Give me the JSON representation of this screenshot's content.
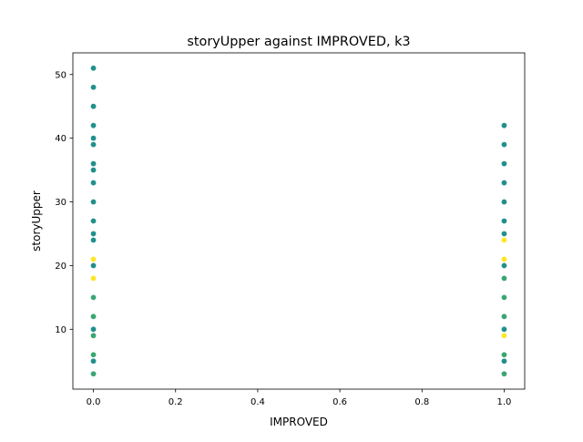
{
  "chart_data": {
    "type": "scatter",
    "title": "storyUpper against IMPROVED, k3",
    "xlabel": "IMPROVED",
    "ylabel": "storyUpper",
    "xlim": [
      -0.05,
      1.05
    ],
    "ylim": [
      0.6,
      53.4
    ],
    "x_ticks": [
      "0.0",
      "0.2",
      "0.4",
      "0.6",
      "0.8",
      "1.0"
    ],
    "y_ticks": [
      "10",
      "20",
      "30",
      "40",
      "50"
    ],
    "grid": false,
    "point_colors": {
      "teal": "#21908d",
      "green": "#3aa672",
      "yellow": "#fde725"
    },
    "points": [
      {
        "x": 0,
        "y": 51,
        "color": "teal"
      },
      {
        "x": 0,
        "y": 48,
        "color": "teal"
      },
      {
        "x": 0,
        "y": 45,
        "color": "teal"
      },
      {
        "x": 0,
        "y": 42,
        "color": "teal"
      },
      {
        "x": 0,
        "y": 40,
        "color": "teal"
      },
      {
        "x": 0,
        "y": 39,
        "color": "teal"
      },
      {
        "x": 0,
        "y": 36,
        "color": "teal"
      },
      {
        "x": 0,
        "y": 35,
        "color": "teal"
      },
      {
        "x": 0,
        "y": 33,
        "color": "teal"
      },
      {
        "x": 0,
        "y": 30,
        "color": "teal"
      },
      {
        "x": 0,
        "y": 27,
        "color": "teal"
      },
      {
        "x": 0,
        "y": 25,
        "color": "teal"
      },
      {
        "x": 0,
        "y": 24,
        "color": "teal"
      },
      {
        "x": 0,
        "y": 21,
        "color": "yellow"
      },
      {
        "x": 0,
        "y": 20,
        "color": "teal"
      },
      {
        "x": 0,
        "y": 18,
        "color": "yellow"
      },
      {
        "x": 0,
        "y": 15,
        "color": "green"
      },
      {
        "x": 0,
        "y": 12,
        "color": "green"
      },
      {
        "x": 0,
        "y": 10,
        "color": "teal"
      },
      {
        "x": 0,
        "y": 9,
        "color": "green"
      },
      {
        "x": 0,
        "y": 6,
        "color": "green"
      },
      {
        "x": 0,
        "y": 5,
        "color": "teal"
      },
      {
        "x": 0,
        "y": 3,
        "color": "green"
      },
      {
        "x": 1,
        "y": 42,
        "color": "teal"
      },
      {
        "x": 1,
        "y": 39,
        "color": "teal"
      },
      {
        "x": 1,
        "y": 36,
        "color": "teal"
      },
      {
        "x": 1,
        "y": 33,
        "color": "teal"
      },
      {
        "x": 1,
        "y": 30,
        "color": "teal"
      },
      {
        "x": 1,
        "y": 27,
        "color": "teal"
      },
      {
        "x": 1,
        "y": 25,
        "color": "teal"
      },
      {
        "x": 1,
        "y": 24,
        "color": "yellow"
      },
      {
        "x": 1,
        "y": 21,
        "color": "yellow"
      },
      {
        "x": 1,
        "y": 20,
        "color": "teal"
      },
      {
        "x": 1,
        "y": 18,
        "color": "green"
      },
      {
        "x": 1,
        "y": 15,
        "color": "green"
      },
      {
        "x": 1,
        "y": 12,
        "color": "green"
      },
      {
        "x": 1,
        "y": 10,
        "color": "teal"
      },
      {
        "x": 1,
        "y": 9,
        "color": "yellow"
      },
      {
        "x": 1,
        "y": 6,
        "color": "green"
      },
      {
        "x": 1,
        "y": 5,
        "color": "teal"
      },
      {
        "x": 1,
        "y": 3,
        "color": "green"
      }
    ]
  }
}
